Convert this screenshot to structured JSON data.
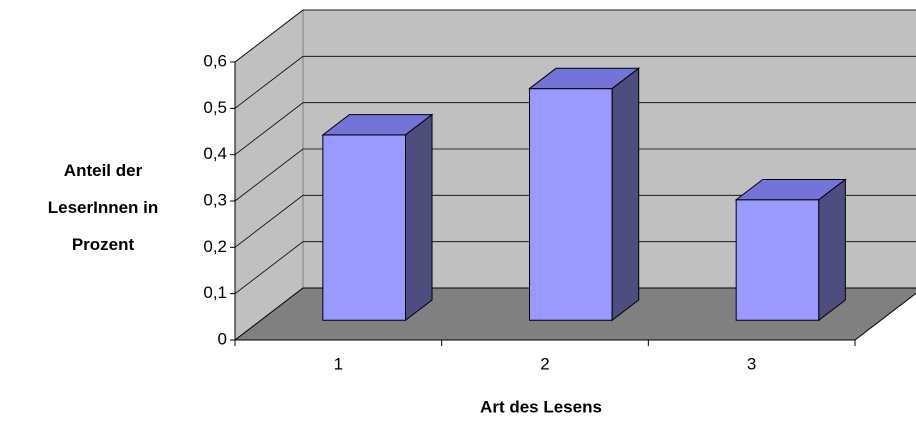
{
  "chart_data": {
    "type": "bar3d",
    "categories": [
      "1",
      "2",
      "3"
    ],
    "values": [
      0.4,
      0.5,
      0.26
    ],
    "color": "#9999ff",
    "x_label": "Art des Lesens",
    "y_label": "Anteil der LeserInnen in Prozent",
    "ylim": [
      0,
      0.6
    ],
    "yticks": [
      0,
      {
        "value": 0.1,
        "label": "0,1"
      },
      {
        "value": 0.2,
        "label": "0,2"
      },
      {
        "value": 0.3,
        "label": "0,3"
      },
      {
        "value": 0.4,
        "label": "0,4"
      },
      {
        "value": 0.5,
        "label": "0,5"
      },
      {
        "value": 0.6,
        "label": "0,6"
      }
    ],
    "grid": true
  }
}
